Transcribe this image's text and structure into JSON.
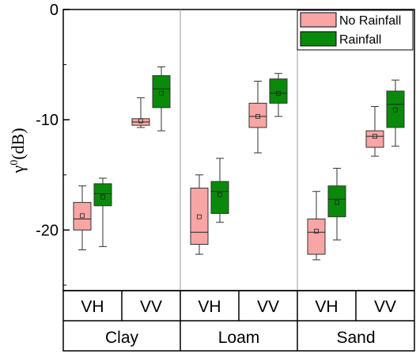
{
  "chart_data": {
    "type": "box",
    "ylabel": {
      "symbol": "γ",
      "sup": "0",
      "unit": "(dB)"
    },
    "ylim": [
      -25.5,
      0
    ],
    "yticks": [
      0,
      -10,
      -20
    ],
    "yticks_labels": [
      "0",
      "-10",
      "-20"
    ],
    "groups": [
      "Clay",
      "Loam",
      "Sand"
    ],
    "polarizations": [
      "VH",
      "VV",
      "VH",
      "VV",
      "VH",
      "VV"
    ],
    "legend": {
      "placement": "top-right",
      "entries": [
        "No Rainfall",
        "Rainfall"
      ]
    },
    "series": [
      {
        "name": "No Rainfall",
        "color": "#f7a5a5",
        "boxes": [
          {
            "group": "Clay",
            "pol": "VH",
            "whisker_low": -21.8,
            "q1": -20.0,
            "median": -19.0,
            "q3": -17.5,
            "whisker_high": -16.0,
            "mean": -18.7
          },
          {
            "group": "Clay",
            "pol": "VV",
            "whisker_low": -10.7,
            "q1": -10.5,
            "median": -10.2,
            "q3": -9.9,
            "whisker_high": -8.0,
            "mean": -10.1
          },
          {
            "group": "Loam",
            "pol": "VH",
            "whisker_low": -22.2,
            "q1": -21.3,
            "median": -20.2,
            "q3": -16.2,
            "whisker_high": -15.0,
            "mean": -18.8
          },
          {
            "group": "Loam",
            "pol": "VV",
            "whisker_low": -13.0,
            "q1": -10.7,
            "median": -9.7,
            "q3": -8.5,
            "whisker_high": -6.5,
            "mean": -9.7
          },
          {
            "group": "Sand",
            "pol": "VH",
            "whisker_low": -22.7,
            "q1": -22.2,
            "median": -20.2,
            "q3": -19.0,
            "whisker_high": -16.5,
            "mean": -20.1
          },
          {
            "group": "Sand",
            "pol": "VV",
            "whisker_low": -13.3,
            "q1": -12.5,
            "median": -11.5,
            "q3": -11.0,
            "whisker_high": -8.8,
            "mean": -11.5
          }
        ]
      },
      {
        "name": "Rainfall",
        "color": "#0a8a0a",
        "boxes": [
          {
            "group": "Clay",
            "pol": "VH",
            "whisker_low": -21.5,
            "q1": -17.8,
            "median": -16.7,
            "q3": -15.8,
            "whisker_high": -15.3,
            "mean": -17.0
          },
          {
            "group": "Clay",
            "pol": "VV",
            "whisker_low": -11.0,
            "q1": -8.9,
            "median": -7.2,
            "q3": -6.0,
            "whisker_high": -5.2,
            "mean": -7.6
          },
          {
            "group": "Loam",
            "pol": "VH",
            "whisker_low": -19.3,
            "q1": -18.5,
            "median": -16.5,
            "q3": -15.6,
            "whisker_high": -13.5,
            "mean": -16.8
          },
          {
            "group": "Loam",
            "pol": "VV",
            "whisker_low": -9.7,
            "q1": -8.5,
            "median": -7.6,
            "q3": -6.3,
            "whisker_high": -5.8,
            "mean": -7.6
          },
          {
            "group": "Sand",
            "pol": "VH",
            "whisker_low": -20.9,
            "q1": -18.8,
            "median": -17.2,
            "q3": -16.0,
            "whisker_high": -14.4,
            "mean": -17.5
          },
          {
            "group": "Sand",
            "pol": "VV",
            "whisker_low": -12.4,
            "q1": -10.7,
            "median": -8.6,
            "q3": -7.4,
            "whisker_high": -6.4,
            "mean": -9.1
          }
        ]
      }
    ]
  }
}
